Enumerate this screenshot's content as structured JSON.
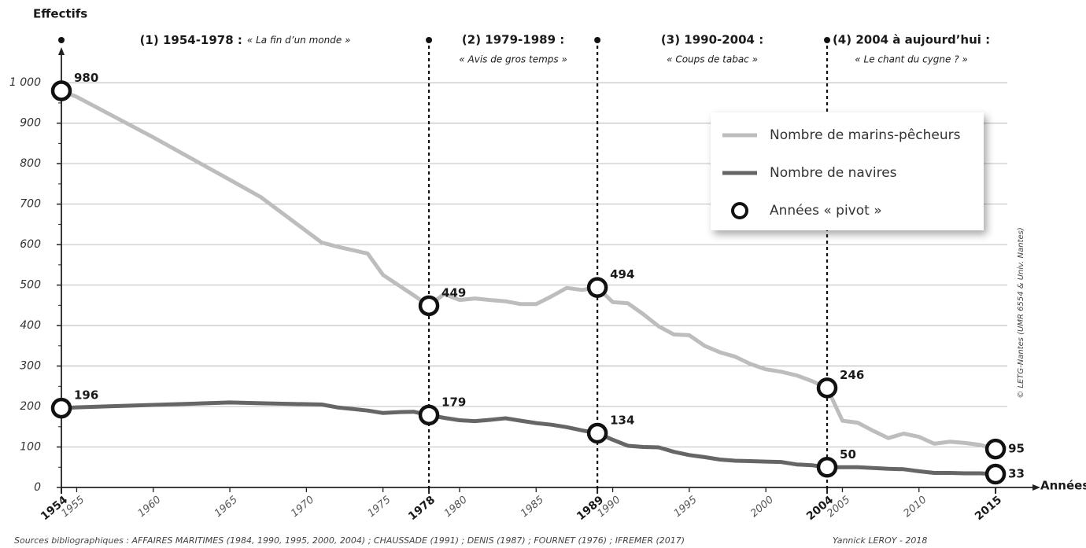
{
  "chart_data": {
    "type": "line",
    "ylabel": "Effectifs",
    "xlabel": "Années",
    "source": "Sources bibliographiques : AFFAIRES MARITIMES (1984, 1990, 1995, 2000, 2004) ; CHAUSSADE (1991) ; DENIS (1987) ; FOURNET (1976) ; IFREMER (2017)",
    "author": "Yannick LEROY - 2018",
    "copyright": "© LETG-Nantes (UMR 6554 & Univ. Nantes)",
    "x": [
      1954,
      1955,
      1960,
      1965,
      1967,
      1971,
      1972,
      1974,
      1975,
      1976,
      1977,
      1978,
      1979,
      1980,
      1981,
      1982,
      1983,
      1984,
      1985,
      1986,
      1987,
      1988,
      1989,
      1990,
      1991,
      1992,
      1993,
      1994,
      1995,
      1996,
      1997,
      1998,
      1999,
      2000,
      2001,
      2002,
      2003,
      2004,
      2005,
      2006,
      2007,
      2008,
      2009,
      2010,
      2011,
      2012,
      2013,
      2014,
      2015
    ],
    "series": [
      {
        "name": "Nombre de marins-pêcheurs",
        "color": "#bdbdbd",
        "values": [
          980,
          965,
          865,
          760,
          718,
          605,
          595,
          578,
          525,
          500,
          475,
          449,
          478,
          463,
          467,
          463,
          460,
          453,
          453,
          472,
          493,
          488,
          494,
          458,
          455,
          428,
          398,
          378,
          376,
          350,
          334,
          323,
          305,
          292,
          286,
          277,
          263,
          246,
          165,
          160,
          140,
          122,
          133,
          125,
          108,
          113,
          110,
          105,
          95
        ]
      },
      {
        "name": "Nombre de navires",
        "color": "#666666",
        "values": [
          196,
          198,
          204,
          210,
          208,
          205,
          198,
          190,
          184,
          186,
          187,
          179,
          172,
          166,
          164,
          167,
          171,
          165,
          159,
          155,
          149,
          141,
          134,
          118,
          103,
          100,
          99,
          88,
          80,
          75,
          69,
          66,
          65,
          64,
          63,
          57,
          55,
          50,
          50,
          50,
          48,
          46,
          45,
          40,
          36,
          36,
          35,
          35,
          33
        ]
      }
    ],
    "pivot_legend": "Années « pivot »",
    "highlight_x": [
      1954,
      1978,
      1989,
      2004,
      2015
    ],
    "periods": [
      {
        "start": 1954,
        "end": 1978,
        "title": "(1) 1954-1978 :",
        "subtitle": "« La fin d’un monde »"
      },
      {
        "start": 1978,
        "end": 1989,
        "title": "(2) 1979-1989 :",
        "subtitle": "« Avis de gros temps »"
      },
      {
        "start": 1989,
        "end": 2004,
        "title": "(3) 1990-2004 :",
        "subtitle": "« Coups de tabac »"
      },
      {
        "start": 2004,
        "end": 2015,
        "title": "(4) 2004 à aujourd’hui :",
        "subtitle": "« Le chant du cygne ? »"
      }
    ],
    "xlim": [
      1954,
      2017
    ],
    "xticks": [
      1955,
      1960,
      1965,
      1970,
      1975,
      1980,
      1985,
      1990,
      1995,
      2000,
      2005,
      2010
    ],
    "ylim": [
      0,
      1080
    ],
    "yticks": [
      0,
      100,
      200,
      300,
      400,
      500,
      600,
      700,
      800,
      900,
      {
        "value": 1000,
        "label": "1 000"
      }
    ],
    "grid": true
  }
}
